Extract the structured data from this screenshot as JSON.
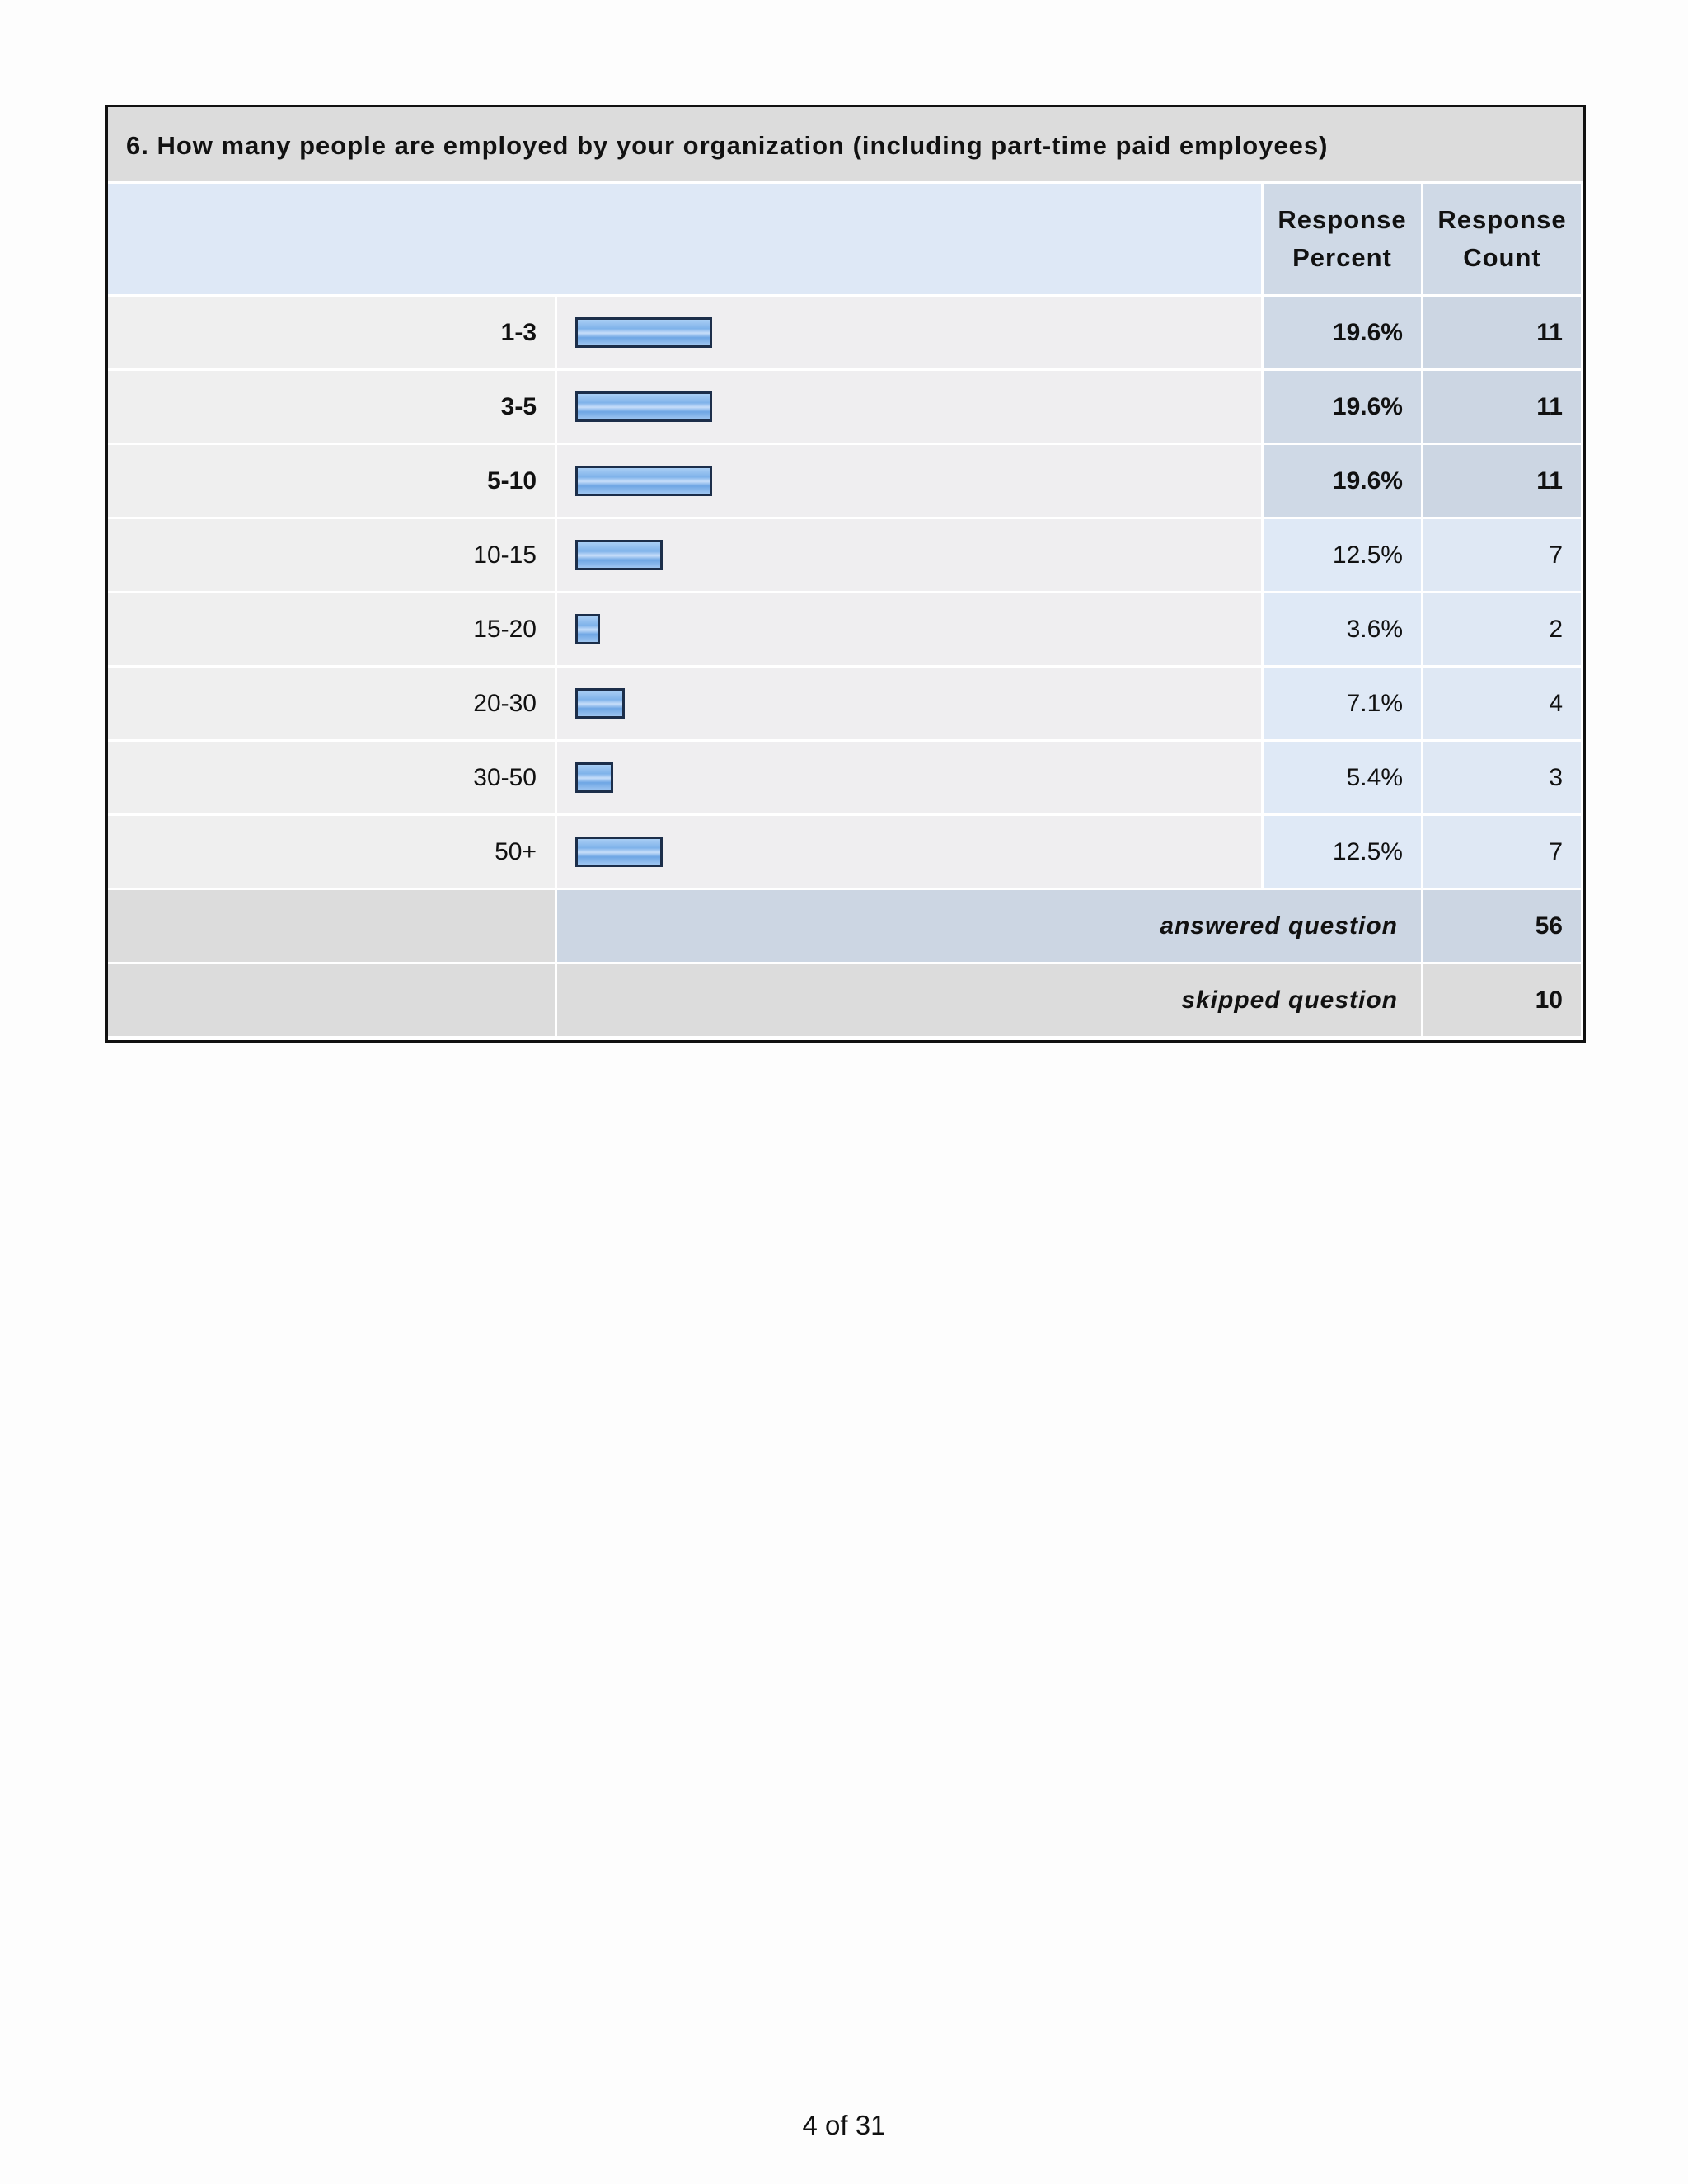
{
  "question": {
    "title": "6. How many people are employed by your organization (including part-time paid employees)"
  },
  "header": {
    "response_percent": "Response\nPercent",
    "response_count": "Response\nCount"
  },
  "rows": [
    {
      "label": "1-3",
      "percent": "19.6%",
      "count": "11",
      "fraction": 0.196,
      "bold": true
    },
    {
      "label": "3-5",
      "percent": "19.6%",
      "count": "11",
      "fraction": 0.196,
      "bold": true
    },
    {
      "label": "5-10",
      "percent": "19.6%",
      "count": "11",
      "fraction": 0.196,
      "bold": true
    },
    {
      "label": "10-15",
      "percent": "12.5%",
      "count": "7",
      "fraction": 0.125,
      "bold": false
    },
    {
      "label": "15-20",
      "percent": "3.6%",
      "count": "2",
      "fraction": 0.036,
      "bold": false
    },
    {
      "label": "20-30",
      "percent": "7.1%",
      "count": "4",
      "fraction": 0.071,
      "bold": false
    },
    {
      "label": "30-50",
      "percent": "5.4%",
      "count": "3",
      "fraction": 0.054,
      "bold": false
    },
    {
      "label": "50+",
      "percent": "12.5%",
      "count": "7",
      "fraction": 0.125,
      "bold": false
    }
  ],
  "summary": {
    "answered_label": "answered question",
    "answered_value": "56",
    "skipped_label": "skipped question",
    "skipped_value": "10"
  },
  "footer": {
    "page_number": "4 of 31"
  },
  "colors": {
    "bar_fill": "#7fb2ea",
    "bar_border": "#1c2e4a",
    "title_bg": "#dcdcdc",
    "header_bg": "#dee8f6"
  }
}
